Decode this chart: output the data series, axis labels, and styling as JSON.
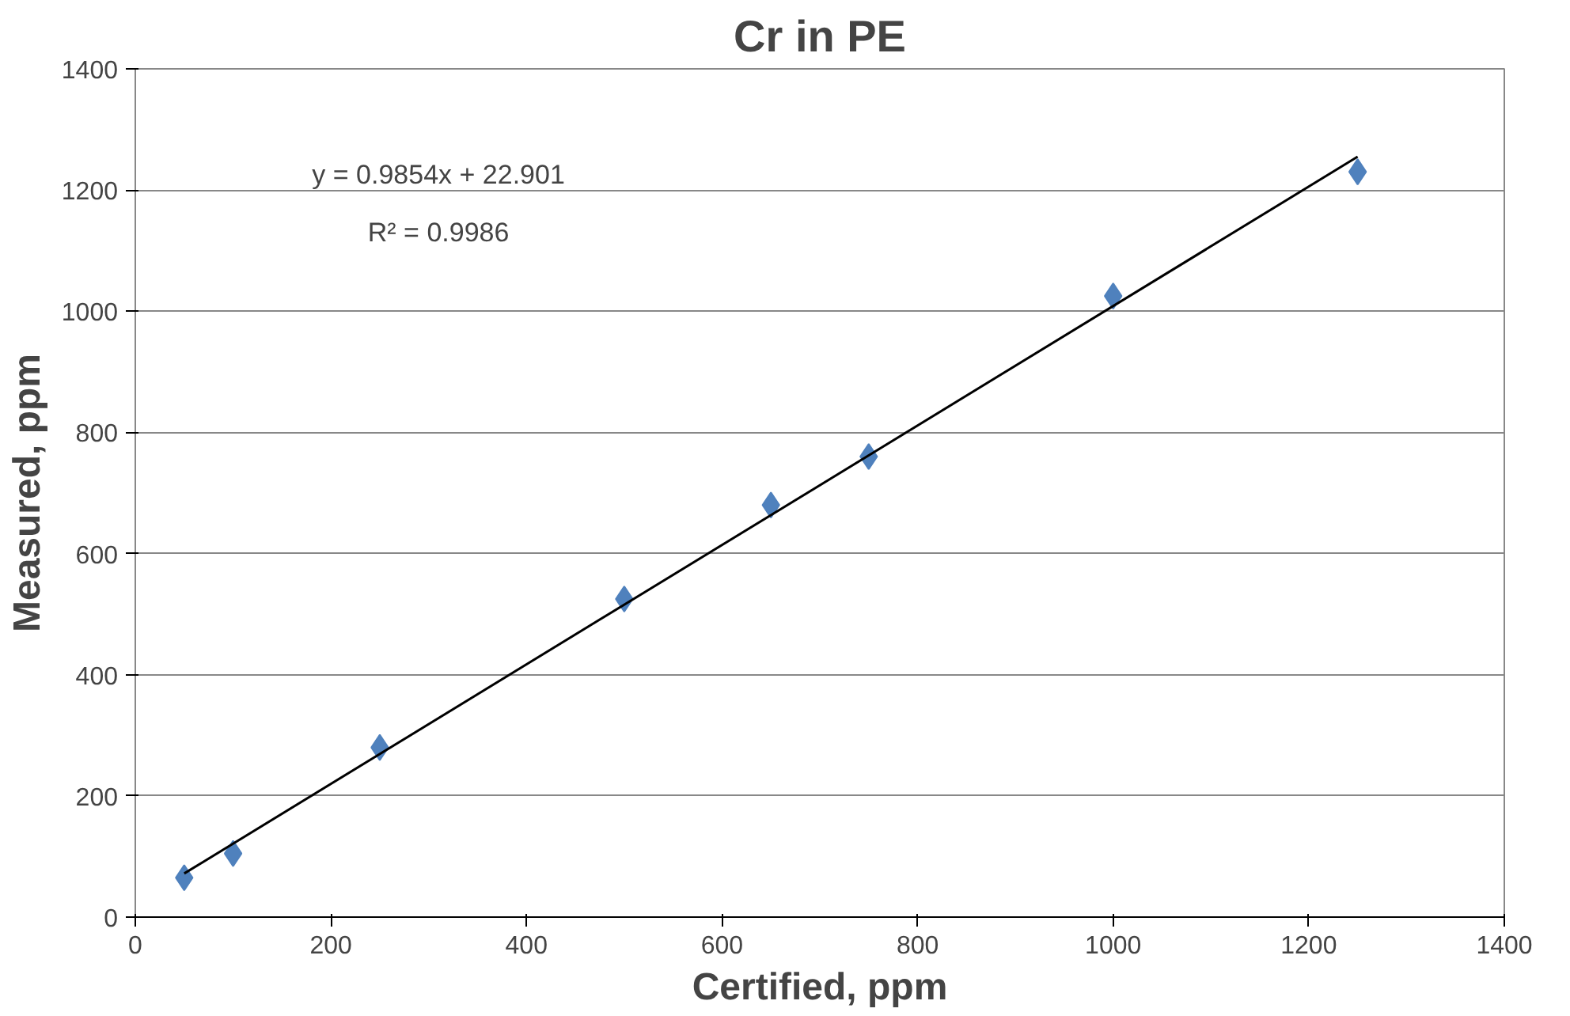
{
  "chart_data": {
    "type": "scatter",
    "title": "Cr in PE",
    "xlabel": "Certified, ppm",
    "ylabel": "Measured, ppm",
    "xlim": [
      0,
      1400
    ],
    "xticks": [
      0,
      200,
      400,
      600,
      800,
      1000,
      1200,
      1400
    ],
    "ylim": [
      0,
      1400
    ],
    "yticks": [
      0,
      200,
      400,
      600,
      800,
      1000,
      1200,
      1400
    ],
    "grid": "y",
    "marker": "diamond",
    "series": [
      {
        "color": "#4f81bd",
        "x": [
          50,
          100,
          250,
          500,
          650,
          750,
          1000,
          1250
        ],
        "values": [
          65,
          105,
          280,
          525,
          680,
          760,
          1025,
          1230
        ]
      },
      {
        "type": "line",
        "color": "#000000",
        "marker": "none",
        "line_style": "solid",
        "x": [
          50,
          1250
        ],
        "values": [
          72,
          1255
        ]
      }
    ],
    "annotations": [
      "y = 0.9854x + 22.901",
      "R² = 0.9986"
    ]
  }
}
